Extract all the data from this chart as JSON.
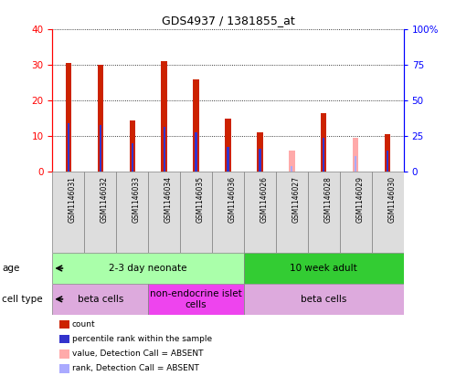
{
  "title": "GDS4937 / 1381855_at",
  "samples": [
    "GSM1146031",
    "GSM1146032",
    "GSM1146033",
    "GSM1146034",
    "GSM1146035",
    "GSM1146036",
    "GSM1146026",
    "GSM1146027",
    "GSM1146028",
    "GSM1146029",
    "GSM1146030"
  ],
  "red_values": [
    30.5,
    30.0,
    14.5,
    31.0,
    26.0,
    15.0,
    11.0,
    0.0,
    16.5,
    0.0,
    10.5
  ],
  "blue_values": [
    13.5,
    13.0,
    8.0,
    12.5,
    11.0,
    7.0,
    6.5,
    0.0,
    9.5,
    0.0,
    6.0
  ],
  "pink_values": [
    0.0,
    0.0,
    0.0,
    0.0,
    0.0,
    0.0,
    0.0,
    6.0,
    0.0,
    9.5,
    0.0
  ],
  "lightblue_values": [
    0.0,
    0.0,
    0.0,
    0.0,
    0.0,
    0.0,
    0.0,
    1.5,
    0.0,
    4.5,
    0.0
  ],
  "red_color": "#CC2200",
  "blue_color": "#3333CC",
  "pink_color": "#FFAAAA",
  "lightblue_color": "#AAAAFF",
  "ylim_left": [
    0,
    40
  ],
  "ylim_right": [
    0,
    100
  ],
  "yticks_left": [
    0,
    10,
    20,
    30,
    40
  ],
  "yticks_right": [
    0,
    25,
    50,
    75,
    100
  ],
  "yticklabels_right": [
    "0",
    "25",
    "50",
    "75",
    "100%"
  ],
  "age_groups": [
    {
      "label": "2-3 day neonate",
      "start": 0,
      "end": 6,
      "color": "#AAFFAA"
    },
    {
      "label": "10 week adult",
      "start": 6,
      "end": 11,
      "color": "#33CC33"
    }
  ],
  "cell_groups": [
    {
      "label": "beta cells",
      "start": 0,
      "end": 3,
      "color": "#DDAADD"
    },
    {
      "label": "non-endocrine islet\ncells",
      "start": 3,
      "end": 6,
      "color": "#EE44EE"
    },
    {
      "label": "beta cells",
      "start": 6,
      "end": 11,
      "color": "#DDAADD"
    }
  ],
  "legend_items": [
    {
      "label": "count",
      "color": "#CC2200"
    },
    {
      "label": "percentile rank within the sample",
      "color": "#3333CC"
    },
    {
      "label": "value, Detection Call = ABSENT",
      "color": "#FFAAAA"
    },
    {
      "label": "rank, Detection Call = ABSENT",
      "color": "#AAAAFF"
    }
  ]
}
